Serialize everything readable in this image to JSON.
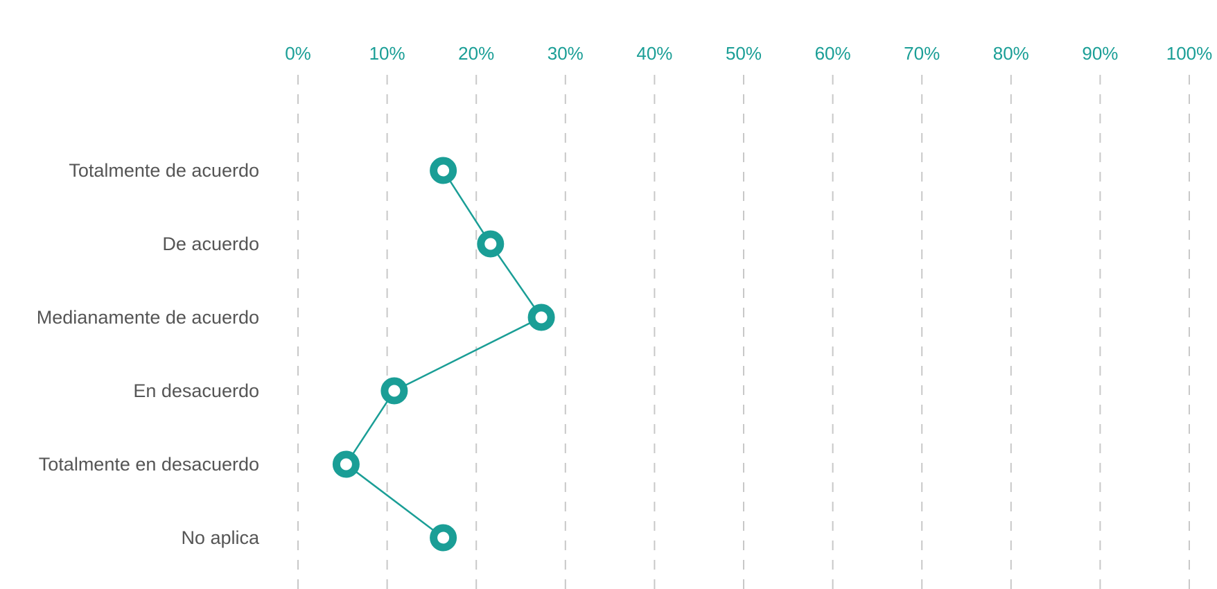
{
  "colors": {
    "accent": "#1a9e96",
    "category_text": "#555555",
    "grid": "#c8c8c8",
    "background": "#ffffff"
  },
  "chart_data": {
    "type": "line",
    "orientation": "horizontal",
    "title": "",
    "xlabel": "",
    "ylabel": "",
    "x_ticks": [
      "0%",
      "10%",
      "20%",
      "30%",
      "40%",
      "50%",
      "60%",
      "70%",
      "80%",
      "90%",
      "100%"
    ],
    "xlim": [
      0,
      100
    ],
    "grid": true,
    "categories": [
      "Totalmente de acuerdo",
      "De acuerdo",
      "Medianamente de acuerdo",
      "En desacuerdo",
      "Totalmente en desacuerdo",
      "No aplica"
    ],
    "values": [
      16.3,
      21.6,
      27.3,
      10.8,
      5.4,
      16.3
    ]
  }
}
